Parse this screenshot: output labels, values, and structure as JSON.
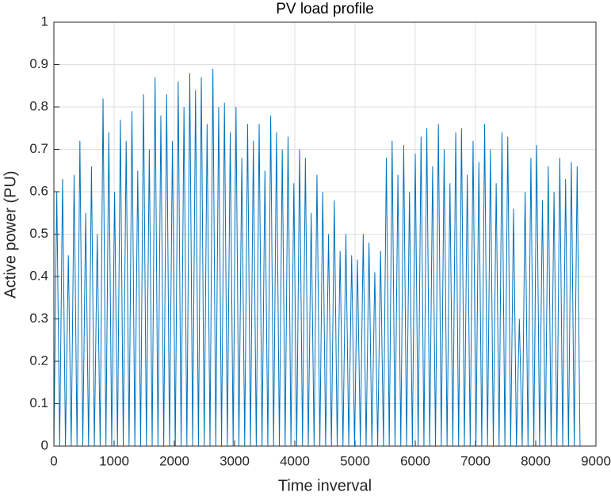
{
  "chart_data": {
    "type": "line",
    "title": "PV load profile",
    "x_label": "Time inverval",
    "y_label": "Active power (PU)",
    "x": [
      0,
      48,
      96,
      144,
      192,
      240,
      288,
      336,
      384,
      432,
      480,
      528,
      576,
      624,
      672,
      720,
      768,
      816,
      864,
      912,
      960,
      1008,
      1056,
      1104,
      1152,
      1200,
      1248,
      1296,
      1344,
      1392,
      1440,
      1488,
      1536,
      1584,
      1632,
      1680,
      1728,
      1776,
      1824,
      1872,
      1920,
      1968,
      2016,
      2064,
      2112,
      2160,
      2208,
      2256,
      2304,
      2352,
      2400,
      2448,
      2496,
      2544,
      2592,
      2640,
      2688,
      2736,
      2784,
      2832,
      2880,
      2928,
      2976,
      3024,
      3072,
      3120,
      3168,
      3216,
      3264,
      3312,
      3360,
      3408,
      3456,
      3504,
      3552,
      3600,
      3648,
      3696,
      3744,
      3792,
      3840,
      3888,
      3936,
      3984,
      4032,
      4080,
      4128,
      4176,
      4224,
      4272,
      4320,
      4368,
      4416,
      4464,
      4512,
      4560,
      4608,
      4656,
      4704,
      4752,
      4800,
      4848,
      4896,
      4944,
      4992,
      5040,
      5088,
      5136,
      5184,
      5232,
      5280,
      5328,
      5376,
      5424,
      5472,
      5520,
      5568,
      5616,
      5664,
      5712,
      5760,
      5808,
      5856,
      5904,
      5952,
      6000,
      6048,
      6096,
      6144,
      6192,
      6240,
      6288,
      6336,
      6384,
      6432,
      6480,
      6528,
      6576,
      6624,
      6672,
      6720,
      6768,
      6816,
      6864,
      6912,
      6960,
      7008,
      7056,
      7104,
      7152,
      7200,
      7248,
      7296,
      7344,
      7392,
      7440,
      7488,
      7536,
      7584,
      7632,
      7680,
      7728,
      7776,
      7824,
      7872,
      7920,
      7968,
      8016,
      8064,
      8112,
      8160,
      8208,
      8256,
      8304,
      8352,
      8400,
      8448,
      8496,
      8544,
      8592,
      8640,
      8688,
      8736
    ],
    "values": [
      0,
      0.6,
      0,
      0.63,
      0,
      0.45,
      0,
      0.64,
      0,
      0.72,
      0,
      0.55,
      0,
      0.66,
      0,
      0.5,
      0,
      0.82,
      0,
      0.74,
      0,
      0.6,
      0,
      0.77,
      0,
      0.72,
      0,
      0.79,
      0,
      0.65,
      0,
      0.83,
      0,
      0.7,
      0,
      0.87,
      0,
      0.78,
      0,
      0.83,
      0,
      0.72,
      0,
      0.86,
      0,
      0.8,
      0,
      0.88,
      0,
      0.84,
      0,
      0.87,
      0,
      0.76,
      0,
      0.89,
      0,
      0.8,
      0,
      0.81,
      0,
      0.74,
      0,
      0.8,
      0,
      0.68,
      0,
      0.76,
      0,
      0.72,
      0,
      0.76,
      0,
      0.65,
      0,
      0.78,
      0,
      0.74,
      0,
      0.7,
      0,
      0.73,
      0,
      0.62,
      0,
      0.7,
      0,
      0.68,
      0,
      0.55,
      0,
      0.64,
      0,
      0.6,
      0,
      0.5,
      0,
      0.58,
      0,
      0.46,
      0,
      0.5,
      0,
      0.45,
      0,
      0.44,
      0,
      0.5,
      0,
      0.48,
      0,
      0.41,
      0,
      0.46,
      0,
      0.68,
      0,
      0.72,
      0,
      0.64,
      0,
      0.71,
      0,
      0.6,
      0,
      0.69,
      0,
      0.73,
      0,
      0.75,
      0,
      0.66,
      0,
      0.76,
      0,
      0.7,
      0,
      0.62,
      0,
      0.74,
      0,
      0.75,
      0,
      0.64,
      0,
      0.72,
      0,
      0.67,
      0,
      0.76,
      0,
      0.7,
      0,
      0.62,
      0,
      0.74,
      0,
      0.73,
      0,
      0.56,
      0,
      0.3,
      0,
      0.6,
      0,
      0.68,
      0,
      0.71,
      0,
      0.58,
      0,
      0.66,
      0,
      0.6,
      0,
      0.68,
      0,
      0.63,
      0,
      0.67,
      0,
      0.66,
      0
    ],
    "color": "#0072bd",
    "xlim": [
      0,
      9000
    ],
    "xticks": [
      0,
      1000,
      2000,
      3000,
      4000,
      5000,
      6000,
      7000,
      8000,
      9000
    ],
    "ylim": [
      0,
      1
    ],
    "yticks": [
      0,
      0.1,
      0.2,
      0.3,
      0.4,
      0.5,
      0.6,
      0.7,
      0.8,
      0.9,
      1
    ],
    "grid": true
  }
}
